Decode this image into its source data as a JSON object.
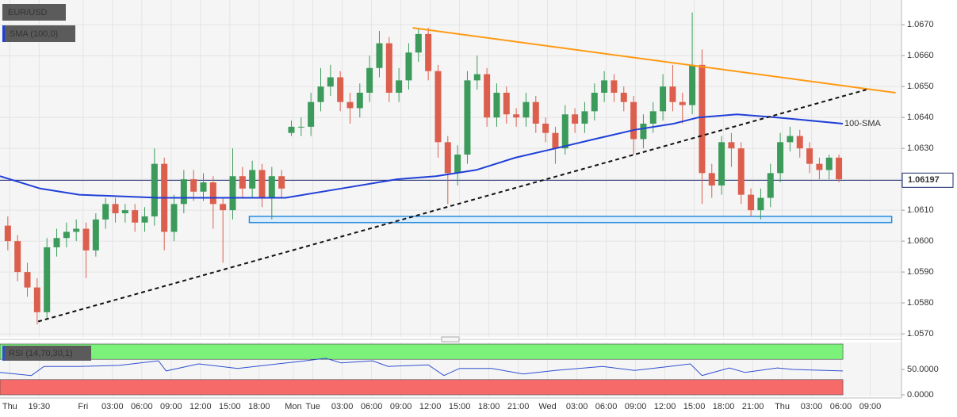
{
  "chart_data": {
    "type": "candlestick",
    "symbol": "EUR/USD",
    "colors": {
      "up": "#3c9b5a",
      "down": "#dc5f4e"
    },
    "open": [
      1.0605,
      1.06,
      1.059,
      1.0585,
      1.0577,
      1.0598,
      1.0601,
      1.0603,
      1.0604,
      1.0597,
      1.0607,
      1.0612,
      1.0609,
      1.061,
      1.0606,
      1.0608,
      1.0625,
      1.0603,
      1.0612,
      1.062,
      1.0616,
      1.0619,
      1.0612,
      1.061,
      1.0621,
      1.0617,
      1.0623,
      1.0614,
      1.0621,
      1.0635,
      1.0637,
      1.0637,
      1.0645,
      1.065,
      1.0653,
      1.0645,
      1.0643,
      1.0648,
      1.0656,
      1.0664,
      1.0648,
      1.0652,
      1.0661,
      1.0667,
      1.0655,
      1.0632,
      1.0622,
      1.0628,
      1.0652,
      1.0654,
      1.064,
      1.0648,
      1.0641,
      1.064,
      1.0645,
      1.0638,
      1.0635,
      1.063,
      1.0641,
      1.0638,
      1.0642,
      1.0648,
      1.0652,
      1.0648,
      1.0645,
      1.0633,
      1.0638,
      1.0642,
      1.065,
      1.0645,
      1.0644,
      1.0657,
      1.0622,
      1.0618,
      1.0632,
      1.063,
      1.0615,
      1.061,
      1.0614,
      1.0622,
      1.0632,
      1.0634,
      1.063,
      1.0625,
      1.0623,
      1.0627
    ],
    "high": [
      1.0608,
      1.0602,
      1.0593,
      1.0588,
      1.0601,
      1.0604,
      1.0606,
      1.0607,
      1.0606,
      1.0609,
      1.0614,
      1.0614,
      1.0612,
      1.0612,
      1.0611,
      1.063,
      1.0627,
      1.0615,
      1.0623,
      1.0623,
      1.0622,
      1.0621,
      1.0614,
      1.063,
      1.0624,
      1.0626,
      1.0625,
      1.0624,
      1.0623,
      1.0639,
      1.064,
      1.0648,
      1.0656,
      1.0657,
      1.0655,
      1.0648,
      1.0651,
      1.066,
      1.0668,
      1.0666,
      1.0656,
      1.0664,
      1.0669,
      1.0669,
      1.0657,
      1.0634,
      1.0631,
      1.0655,
      1.066,
      1.0656,
      1.0651,
      1.065,
      1.0643,
      1.0648,
      1.0647,
      1.064,
      1.0637,
      1.0644,
      1.0643,
      1.0645,
      1.0651,
      1.0655,
      1.0654,
      1.065,
      1.0647,
      1.0641,
      1.0645,
      1.0654,
      1.0657,
      1.0648,
      1.0674,
      1.0662,
      1.0625,
      1.0634,
      1.0635,
      1.0632,
      1.0617,
      1.0617,
      1.0625,
      1.0635,
      1.0637,
      1.0636,
      1.0632,
      1.0627,
      1.0628,
      1.0628
    ],
    "low": [
      1.0597,
      1.0587,
      1.0582,
      1.0573,
      1.0575,
      1.0595,
      1.0598,
      1.06,
      1.0588,
      1.0595,
      1.0604,
      1.0606,
      1.0606,
      1.0603,
      1.0603,
      1.0605,
      1.0597,
      1.06,
      1.0609,
      1.0613,
      1.0613,
      1.0604,
      1.0593,
      1.0607,
      1.0614,
      1.0614,
      1.0611,
      1.0607,
      1.0614,
      1.0634,
      1.0634,
      1.0634,
      1.0642,
      1.0647,
      1.0642,
      1.0638,
      1.064,
      1.0645,
      1.0653,
      1.0645,
      1.0645,
      1.0649,
      1.0658,
      1.0652,
      1.0627,
      1.0612,
      1.0618,
      1.0625,
      1.0649,
      1.0637,
      1.0637,
      1.0638,
      1.0637,
      1.0637,
      1.0635,
      1.0632,
      1.0625,
      1.0628,
      1.0635,
      1.0635,
      1.0639,
      1.0645,
      1.0645,
      1.0642,
      1.0628,
      1.063,
      1.0635,
      1.0639,
      1.0642,
      1.0638,
      1.0641,
      1.0612,
      1.0614,
      1.0615,
      1.0624,
      1.0612,
      1.0608,
      1.0607,
      1.0611,
      1.0619,
      1.0629,
      1.0627,
      1.0622,
      1.062,
      1.062,
      1.0619
    ],
    "close": [
      1.06,
      1.059,
      1.0585,
      1.0577,
      1.0598,
      1.0601,
      1.0603,
      1.0604,
      1.0597,
      1.0607,
      1.0612,
      1.0609,
      1.061,
      1.0606,
      1.0608,
      1.0625,
      1.0603,
      1.0612,
      1.062,
      1.0616,
      1.0619,
      1.0612,
      1.061,
      1.0621,
      1.0617,
      1.0623,
      1.0614,
      1.0621,
      1.0617,
      1.0637,
      1.0637,
      1.0645,
      1.065,
      1.0653,
      1.0645,
      1.0643,
      1.0648,
      1.0656,
      1.0664,
      1.0648,
      1.0652,
      1.0661,
      1.0667,
      1.0655,
      1.0632,
      1.0622,
      1.0628,
      1.0652,
      1.0654,
      1.064,
      1.0648,
      1.0641,
      1.064,
      1.0645,
      1.0638,
      1.0635,
      1.063,
      1.0641,
      1.0638,
      1.0642,
      1.0648,
      1.0652,
      1.0648,
      1.0645,
      1.0633,
      1.0638,
      1.0642,
      1.065,
      1.0645,
      1.0644,
      1.0657,
      1.0622,
      1.0618,
      1.0632,
      1.063,
      1.0615,
      1.061,
      1.0614,
      1.0622,
      1.0632,
      1.0634,
      1.063,
      1.0625,
      1.0623,
      1.0627,
      1.062
    ],
    "xlim": [
      0,
      92.2
    ],
    "xticks": [
      {
        "value": 1,
        "label": "Thu"
      },
      {
        "value": 4,
        "label": "19:30"
      },
      {
        "value": 8.5,
        "label": "Fri"
      },
      {
        "value": 11.5,
        "label": "03:00"
      },
      {
        "value": 14.5,
        "label": "06:00"
      },
      {
        "value": 17.5,
        "label": "09:00"
      },
      {
        "value": 20.5,
        "label": "12:00"
      },
      {
        "value": 23.5,
        "label": "15:00"
      },
      {
        "value": 26.5,
        "label": "18:00"
      },
      {
        "value": 30,
        "label": "Mon"
      },
      {
        "value": 32,
        "label": "Tue"
      },
      {
        "value": 35,
        "label": "03:00"
      },
      {
        "value": 38,
        "label": "06:00"
      },
      {
        "value": 41,
        "label": "09:00"
      },
      {
        "value": 44,
        "label": "12:00"
      },
      {
        "value": 47,
        "label": "15:00"
      },
      {
        "value": 50,
        "label": "18:00"
      },
      {
        "value": 53,
        "label": "21:00"
      },
      {
        "value": 56,
        "label": "Wed"
      },
      {
        "value": 59,
        "label": "03:00"
      },
      {
        "value": 62,
        "label": "06:00"
      },
      {
        "value": 65,
        "label": "09:00"
      },
      {
        "value": 68,
        "label": "12:00"
      },
      {
        "value": 71,
        "label": "15:00"
      },
      {
        "value": 74,
        "label": "18:00"
      },
      {
        "value": 77,
        "label": "21:00"
      },
      {
        "value": 80,
        "label": "Thu"
      },
      {
        "value": 83,
        "label": "03:00"
      },
      {
        "value": 86,
        "label": "06:00"
      },
      {
        "value": 89,
        "label": "09:00"
      }
    ],
    "ylim": [
      1.0569,
      1.0678
    ],
    "yticks": [
      {
        "value": 1.057,
        "label": "1.0570"
      },
      {
        "value": 1.058,
        "label": "1.0580"
      },
      {
        "value": 1.059,
        "label": "1.0590"
      },
      {
        "value": 1.06,
        "label": "1.0600"
      },
      {
        "value": 1.061,
        "label": "1.0610"
      },
      {
        "value": 1.062,
        "label": "1.0620"
      },
      {
        "value": 1.063,
        "label": "1.0630"
      },
      {
        "value": 1.064,
        "label": "1.0640"
      },
      {
        "value": 1.065,
        "label": "1.0650"
      },
      {
        "value": 1.066,
        "label": "1.0660"
      },
      {
        "value": 1.067,
        "label": "1.0670"
      }
    ],
    "grid": true,
    "last_price": 1.06197,
    "sma": {
      "name": "SMA (100,0)",
      "label": "100-SMA",
      "color": "#1f3fd8",
      "x": [
        0,
        4.1,
        8.1,
        16.2,
        24.3,
        29.2,
        34.9,
        40.6,
        44.6,
        48.7,
        52.7,
        56.8,
        60.8,
        64.9,
        68.9,
        71.4,
        75.4,
        79.5,
        86.2
      ],
      "values": [
        1.0621,
        1.0617,
        1.0615,
        1.0614,
        1.0614,
        1.0614,
        1.0617,
        1.062,
        1.0621,
        1.0623,
        1.0627,
        1.063,
        1.0633,
        1.0636,
        1.0638,
        1.064,
        1.0641,
        1.064,
        1.0638
      ]
    },
    "trend_lines": [
      {
        "x": [
          42.2,
          91.6
        ],
        "values": [
          1.0669,
          1.0648
        ],
        "color": "#ff9a14",
        "dashed": false
      },
      {
        "x": [
          3.9,
          88.6
        ],
        "values": [
          1.0574,
          1.0649
        ],
        "color": "#111111",
        "dashed": true
      }
    ],
    "support_zone": {
      "x": [
        25.5,
        91.2
      ],
      "values": [
        1.0606,
        1.0608
      ],
      "color": "#2a8cd8"
    },
    "rsi": {
      "name": "RSI (14,70,30,1)",
      "color": "#2f4fd0",
      "ylim": [
        0,
        100
      ],
      "yticks": [
        {
          "value": 50,
          "label": "50.0000"
        },
        {
          "value": 0,
          "label": "0.0000"
        }
      ],
      "overbought": [
        70,
        100
      ],
      "oversold": [
        0,
        30
      ],
      "x": [
        0,
        3.2,
        4.5,
        8.1,
        12.2,
        16.2,
        17.0,
        20.3,
        24.3,
        28.4,
        30.8,
        33.3,
        34.9,
        38.1,
        39.7,
        43.8,
        45.4,
        47.0,
        50.3,
        53.5,
        56.8,
        61.6,
        64.9,
        68.1,
        70.6,
        71.8,
        74.6,
        76.2,
        79.5,
        81.1,
        86.2
      ],
      "values": [
        44,
        38,
        56,
        56,
        58,
        67,
        47,
        61,
        52,
        61,
        66,
        72,
        63,
        67,
        56,
        59,
        38,
        52,
        52,
        41,
        48,
        56,
        48,
        55,
        61,
        38,
        53,
        44,
        53,
        50,
        47
      ]
    }
  }
}
